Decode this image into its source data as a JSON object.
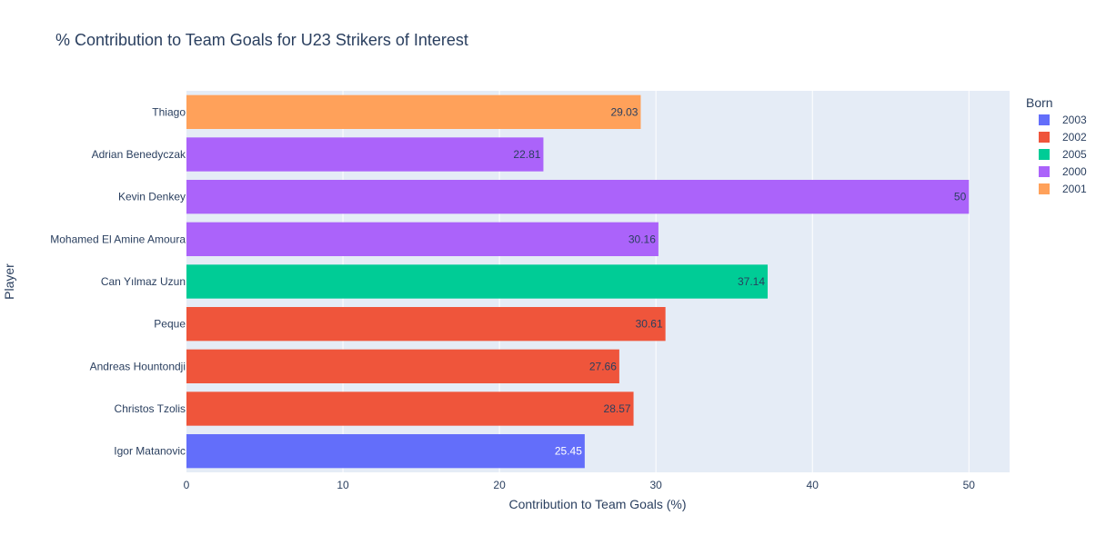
{
  "chart_data": {
    "type": "bar",
    "orientation": "horizontal",
    "title": "% Contribution to Team Goals for U23 Strikers of Interest",
    "xlabel": "Contribution to Team Goals (%)",
    "ylabel": "Player",
    "xlim": [
      0,
      52.6
    ],
    "xticks": [
      "0",
      "10",
      "20",
      "30",
      "40",
      "50"
    ],
    "grid": true,
    "legend_title": "Born",
    "legend_position": "top-right",
    "legend": [
      {
        "name": "2003",
        "color": "#636efa"
      },
      {
        "name": "2002",
        "color": "#ef553b"
      },
      {
        "name": "2005",
        "color": "#00cc96"
      },
      {
        "name": "2000",
        "color": "#ab63fa"
      },
      {
        "name": "2001",
        "color": "#ffa15a"
      }
    ],
    "bars": [
      {
        "player": "Thiago",
        "value": 29.03,
        "label": "29.03",
        "born": "2001"
      },
      {
        "player": "Adrian Benedyczak",
        "value": 22.81,
        "label": "22.81",
        "born": "2000"
      },
      {
        "player": "Kevin Denkey",
        "value": 50,
        "label": "50",
        "born": "2000"
      },
      {
        "player": "Mohamed El Amine Amoura",
        "value": 30.16,
        "label": "30.16",
        "born": "2000"
      },
      {
        "player": "Can Yılmaz Uzun",
        "value": 37.14,
        "label": "37.14",
        "born": "2005"
      },
      {
        "player": "Peque",
        "value": 30.61,
        "label": "30.61",
        "born": "2002"
      },
      {
        "player": "Andreas Hountondji",
        "value": 27.66,
        "label": "27.66",
        "born": "2002"
      },
      {
        "player": "Christos Tzolis",
        "value": 28.57,
        "label": "28.57",
        "born": "2002"
      },
      {
        "player": "Igor Matanovic",
        "value": 25.45,
        "label": "25.45",
        "born": "2003"
      }
    ]
  }
}
